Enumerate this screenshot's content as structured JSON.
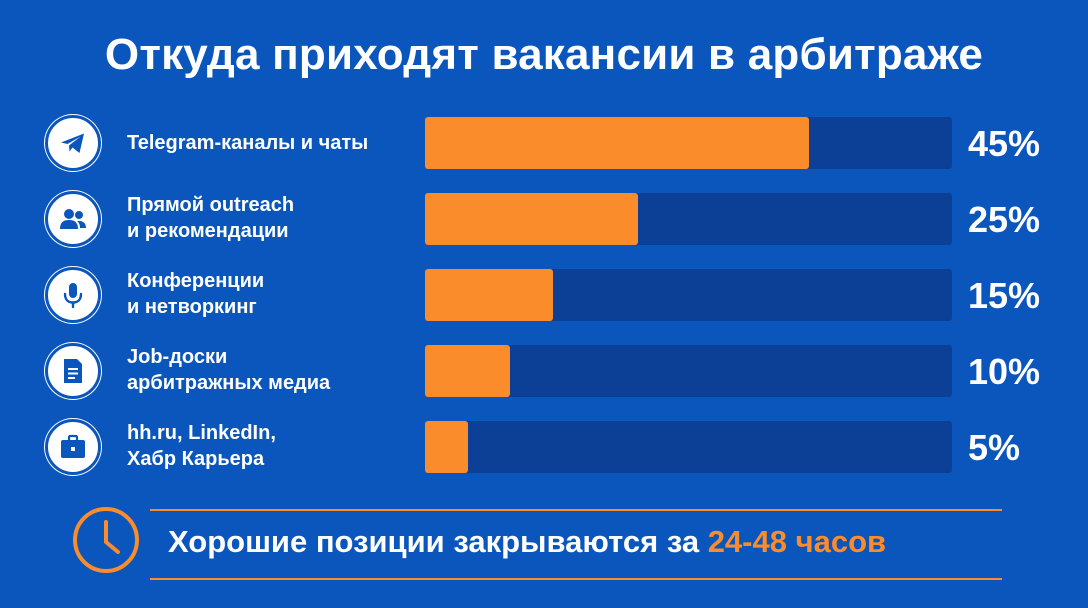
{
  "chart_data": {
    "type": "bar",
    "title": "Откуда приходят вакансии в арбитраже",
    "categories": [
      "Telegram-каналы и чаты",
      "Прямой outreach и рекомендации",
      "Конференции и нетворкинг",
      "Job-доски арбитражных медиа",
      "hh.ru, LinkedIn, Хабр Карьера"
    ],
    "values": [
      45,
      25,
      15,
      10,
      5
    ],
    "value_labels": [
      "45%",
      "25%",
      "15%",
      "10%",
      "5%"
    ],
    "xlim": [
      0,
      100
    ],
    "orientation": "horizontal",
    "grid": false,
    "legend": "none"
  },
  "rows": [
    {
      "label_lines": [
        "Telegram-каналы и чаты"
      ],
      "icon": "telegram-icon"
    },
    {
      "label_lines": [
        "Прямой outreach",
        "и рекомендации"
      ],
      "icon": "people-icon"
    },
    {
      "label_lines": [
        "Конференции",
        "и нетворкинг"
      ],
      "icon": "microphone-icon"
    },
    {
      "label_lines": [
        "Job-доски",
        "арбитражных медиа"
      ],
      "icon": "document-icon"
    },
    {
      "label_lines": [
        "hh.ru, LinkedIn,",
        "Хабр Карьера"
      ],
      "icon": "briefcase-icon"
    }
  ],
  "footer": {
    "text_main": "Хорошие позиции закрываются",
    "text_prefix": "за",
    "text_accent": "24-48 часов",
    "icon": "clock-icon"
  },
  "colors": {
    "background": "#0a56bd",
    "bar_track": "#0c3f96",
    "bar_fill": "#fb8c2b",
    "accent": "#fb8c2b",
    "text": "#ffffff"
  }
}
